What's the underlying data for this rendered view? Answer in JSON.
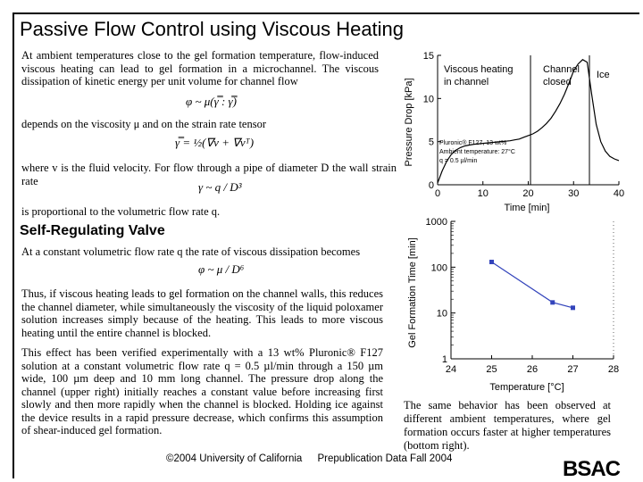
{
  "slide": {
    "title": "Passive Flow Control using Viscous Heating",
    "subheading": "Self-Regulating Valve"
  },
  "body": {
    "p1": "At ambient temperatures close to the gel formation temperature, flow-induced viscous heating can lead to gel formation in a microchannel. The viscous dissipation of kinetic energy per unit volume for channel flow",
    "p2": "depends on the viscosity μ and on the strain rate tensor",
    "p3": "where v is the fluid velocity. For flow through a pipe of diameter D the wall strain rate",
    "p4": "is proportional to the volumetric flow rate q.",
    "p5": "At a constant volumetric flow rate q the rate of viscous dissipation becomes",
    "p6": "Thus, if viscous heating leads to gel formation on the channel walls, this reduces the channel diameter, while simultaneously the viscosity of the liquid poloxamer solution increases simply because of the heating. This leads to more viscous heating until the entire channel is blocked.",
    "p7": "This effect has been verified experimentally with a 13 wt% Pluronic® F127 solution at a constant volumetric flow rate q = 0.5 µl/min through a 150 µm wide, 100 µm deep and 10 mm long channel. The pressure drop along the channel (upper right) initially reaches a constant value before increasing first slowly and then more rapidly when the channel is blocked. Holding ice against the device results in a rapid pressure decrease, which confirms this assumption of shear-induced gel formation."
  },
  "formulas": {
    "dissipation": "φ ~ μ(γ̿ : γ̿)",
    "strain_rate": "γ̿ = ½(∇v + ∇vᵀ)",
    "wall_strain": "γ ~ q / D³",
    "dissipation_q": "φ ~ μ / D⁶"
  },
  "caption": "The same behavior has been observed at different ambient temperatures, where gel formation occurs faster at higher temperatures (bottom right).",
  "footer": {
    "copyright": "©2004 University of California",
    "note": "Prepublication Data Fall 2004"
  },
  "logo": "BSAC",
  "chart_data": [
    {
      "type": "line",
      "x": [
        0,
        1,
        2,
        3,
        4,
        5,
        6,
        7,
        8,
        9,
        10,
        11,
        12,
        13,
        14,
        15,
        16,
        17,
        18,
        19,
        20,
        21,
        22,
        23,
        24,
        25,
        26,
        27,
        28,
        29,
        30,
        31,
        32,
        33,
        34,
        35,
        36,
        37,
        38,
        39,
        40
      ],
      "y": [
        0.2,
        1.6,
        2.7,
        3.5,
        4.0,
        4.3,
        4.5,
        4.6,
        4.7,
        4.75,
        4.8,
        4.85,
        4.9,
        4.95,
        5.0,
        5.05,
        5.1,
        5.2,
        5.3,
        5.5,
        5.7,
        5.9,
        6.2,
        6.6,
        7.1,
        7.7,
        8.5,
        9.4,
        10.5,
        11.8,
        13.2,
        14.0,
        14.5,
        14.2,
        10.5,
        7.0,
        5.0,
        3.9,
        3.3,
        3.0,
        2.8
      ],
      "xlabel": "Time [min]",
      "ylabel": "Pressure Drop [kPa]",
      "xlim": [
        0,
        40
      ],
      "ylim": [
        0,
        15
      ],
      "xticks": [
        "0",
        "10",
        "20",
        "30",
        "40"
      ],
      "yticks": [
        "0",
        "5",
        "10",
        "15"
      ],
      "vlines": [
        20.5,
        33.5
      ],
      "annotations": {
        "region1": [
          "Viscous heating",
          "in channel"
        ],
        "region2": [
          "Channel",
          "closed"
        ],
        "region3": "Ice",
        "conditions": [
          "Pluronic® F127, 13 wt%",
          "Ambient temperature: 27°C",
          "q = 0.5 µl/min"
        ]
      }
    },
    {
      "type": "line",
      "x": [
        25,
        26.5,
        27
      ],
      "y": [
        130,
        17,
        13
      ],
      "xlabel": "Temperature [°C]",
      "ylabel": "Gel Formation Time [min]",
      "xlim": [
        24,
        28
      ],
      "ylim": [
        1,
        1000
      ],
      "yscale": "log",
      "xticks": [
        "24",
        "25",
        "26",
        "27",
        "28"
      ],
      "yticks": [
        "1",
        "10",
        "100",
        "1000"
      ],
      "color": "#3344bb"
    }
  ]
}
